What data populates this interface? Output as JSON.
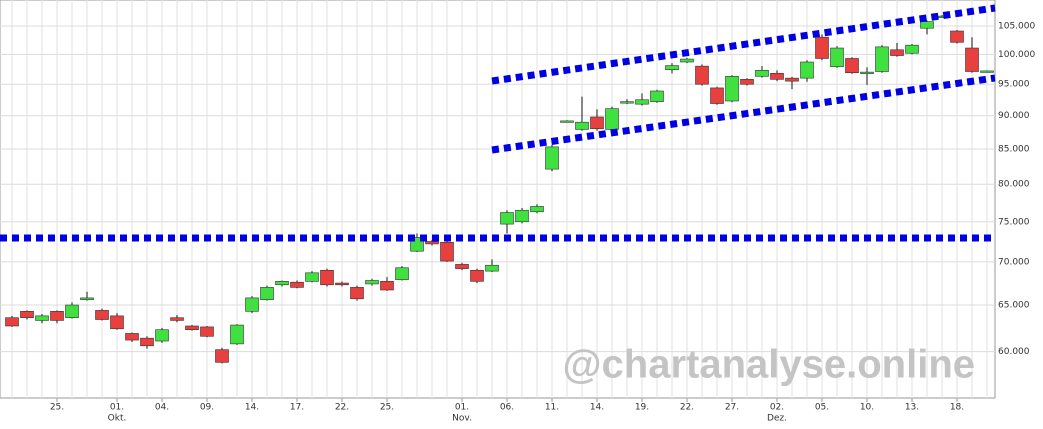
{
  "chart_data": {
    "type": "candlestick",
    "watermark": "@chartanalyse.online",
    "log_scale": true,
    "grid": true,
    "up_color": "#3fe03f",
    "down_color": "#e8403f",
    "categories": [
      null,
      null,
      null,
      "25.",
      null,
      null,
      null,
      "01.",
      null,
      null,
      "04.",
      null,
      null,
      "09.",
      null,
      null,
      "14.",
      null,
      null,
      "17.",
      null,
      null,
      "22.",
      null,
      null,
      "25.",
      null,
      null,
      null,
      null,
      "01.",
      null,
      null,
      "06.",
      null,
      null,
      "11.",
      null,
      null,
      "14.",
      null,
      null,
      "19.",
      null,
      null,
      "22.",
      null,
      null,
      "27.",
      null,
      null,
      "02.",
      null,
      null,
      "05.",
      null,
      null,
      "10.",
      null,
      null,
      "13.",
      null,
      null,
      "18.",
      null,
      null
    ],
    "months": [
      null,
      null,
      null,
      null,
      null,
      null,
      null,
      "Okt.",
      null,
      null,
      null,
      null,
      null,
      null,
      null,
      null,
      null,
      null,
      null,
      null,
      null,
      null,
      null,
      null,
      null,
      null,
      null,
      null,
      null,
      null,
      "Nov.",
      null,
      null,
      null,
      null,
      null,
      null,
      null,
      null,
      null,
      null,
      null,
      null,
      null,
      null,
      null,
      null,
      null,
      null,
      null,
      null,
      "Dez.",
      null,
      null,
      null,
      null,
      null,
      null,
      null,
      null,
      null,
      null,
      null,
      null,
      null,
      null
    ],
    "open": [
      63600,
      64300,
      63300,
      64300,
      63600,
      65600,
      64400,
      63800,
      61900,
      61400,
      61100,
      63600,
      62700,
      62600,
      60200,
      60800,
      64300,
      65600,
      67300,
      67600,
      67700,
      69000,
      67500,
      67000,
      67400,
      67700,
      67900,
      71300,
      72500,
      72400,
      69700,
      69000,
      68900,
      74700,
      75000,
      76300,
      82100,
      89100,
      87900,
      89800,
      87900,
      92100,
      91800,
      92200,
      97400,
      98700,
      98000,
      94400,
      92300,
      95800,
      96300,
      96800,
      96000,
      96000,
      103000,
      97900,
      99300,
      96900,
      97100,
      100800,
      100200,
      104600,
      106700,
      104100,
      101100,
      97100
    ],
    "high": [
      63800,
      64400,
      64000,
      64400,
      65300,
      66500,
      64600,
      64100,
      62000,
      61600,
      62500,
      63900,
      62800,
      62700,
      60400,
      62900,
      66000,
      67200,
      67800,
      67800,
      68900,
      69200,
      67700,
      67200,
      68000,
      68200,
      69500,
      73500,
      72700,
      72600,
      69900,
      69200,
      70300,
      76500,
      76800,
      77300,
      85600,
      89300,
      93000,
      91000,
      91400,
      92600,
      93500,
      94100,
      98500,
      99400,
      98300,
      94600,
      96500,
      96000,
      98000,
      97300,
      96200,
      99000,
      103500,
      101400,
      99500,
      97800,
      101600,
      102000,
      101800,
      106000,
      107000,
      104300,
      103000,
      97300
    ],
    "low": [
      62600,
      63400,
      63000,
      63000,
      63500,
      65500,
      63300,
      62300,
      61000,
      60300,
      60900,
      63100,
      62200,
      61500,
      58800,
      60700,
      64100,
      65500,
      67100,
      66900,
      67600,
      67100,
      67100,
      65500,
      67200,
      66600,
      67800,
      71200,
      72000,
      70000,
      69000,
      67500,
      68800,
      73500,
      74800,
      76100,
      81800,
      89000,
      87700,
      87700,
      87700,
      91800,
      91600,
      92000,
      96800,
      98500,
      94800,
      91700,
      92100,
      94800,
      96100,
      95500,
      94200,
      95400,
      99000,
      97700,
      96700,
      94900,
      96900,
      99600,
      100000,
      103500,
      106500,
      101900,
      96900,
      97000
    ],
    "close": [
      62700,
      63600,
      63800,
      63300,
      65000,
      65800,
      63400,
      62400,
      61200,
      60600,
      62300,
      63300,
      62300,
      61600,
      58900,
      62800,
      65800,
      67000,
      67700,
      67000,
      68700,
      67300,
      67300,
      65700,
      67800,
      66700,
      69300,
      73000,
      72200,
      70100,
      69200,
      67700,
      69600,
      76200,
      76500,
      77000,
      85300,
      89200,
      89000,
      88000,
      91100,
      92200,
      92500,
      93900,
      98100,
      99200,
      95000,
      91900,
      96300,
      95000,
      97300,
      95800,
      95500,
      98700,
      99300,
      101100,
      96900,
      97000,
      101300,
      99800,
      101600,
      105800,
      106800,
      102100,
      97100,
      97200
    ],
    "ylim": [
      55400,
      109800
    ],
    "yticks": [
      {
        "value": 60000,
        "label": "60.000"
      },
      {
        "value": 65000,
        "label": "65.000"
      },
      {
        "value": 70000,
        "label": "70.000"
      },
      {
        "value": 75000,
        "label": "75.000"
      },
      {
        "value": 80000,
        "label": "80.000"
      },
      {
        "value": 85000,
        "label": "85.000"
      },
      {
        "value": 90000,
        "label": "90.000"
      },
      {
        "value": 95000,
        "label": "95.000"
      },
      {
        "value": 100000,
        "label": "100.000"
      },
      {
        "value": 105000,
        "label": "105.000"
      }
    ]
  }
}
